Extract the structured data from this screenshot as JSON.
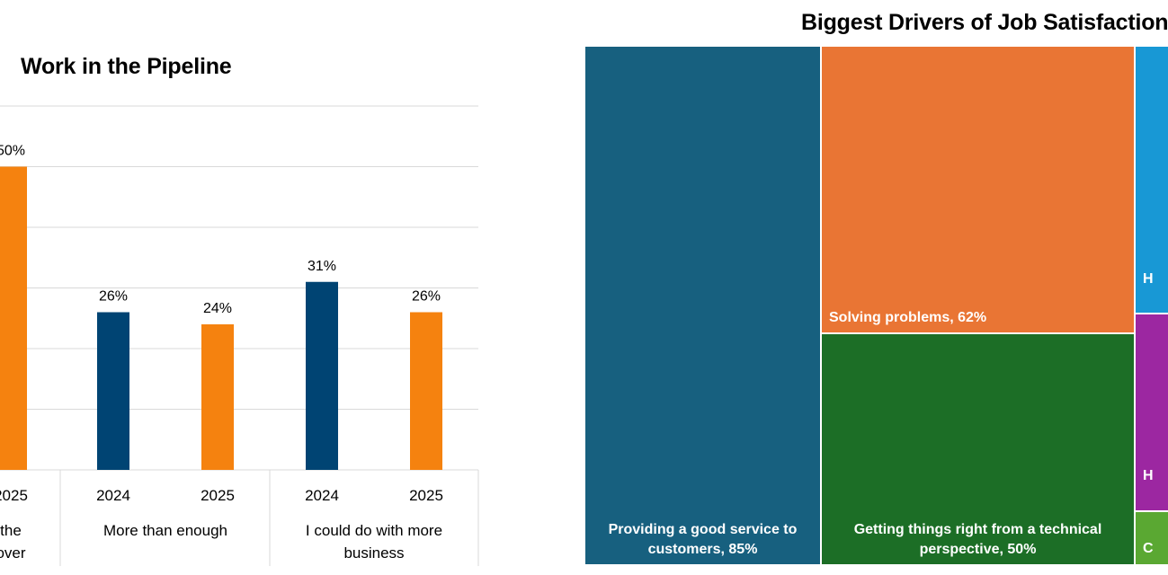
{
  "colors": {
    "series_2024": "#004473",
    "series_2025": "#F5820F",
    "grid": "#D9D9D9",
    "treemap": [
      "#17607F",
      "#E97534",
      "#1C6E26",
      "#1898D5",
      "#9C27A1",
      "#5AA832"
    ]
  },
  "chart_data": [
    {
      "type": "bar",
      "title": "Work in the Pipeline",
      "ylim": [
        0,
        60
      ],
      "grid": true,
      "groups": [
        {
          "label_lines": [
            "the",
            "over"
          ],
          "bars": [
            {
              "year": "2025",
              "value": 50,
              "label": "50%"
            }
          ]
        },
        {
          "label_lines": [
            "More than enough"
          ],
          "bars": [
            {
              "year": "2024",
              "value": 26,
              "label": "26%"
            },
            {
              "year": "2025",
              "value": 24,
              "label": "24%"
            }
          ]
        },
        {
          "label_lines": [
            "I could do with more",
            "business"
          ],
          "bars": [
            {
              "year": "2024",
              "value": 31,
              "label": "31%"
            },
            {
              "year": "2025",
              "value": 26,
              "label": "26%"
            }
          ]
        }
      ]
    },
    {
      "type": "treemap",
      "title": "Biggest Drivers of Job Satisfaction",
      "items": [
        {
          "label_lines": [
            "Providing a good service to",
            "customers, 85%"
          ],
          "value": 85
        },
        {
          "label_lines": [
            "Solving problems, 62%"
          ],
          "value": 62
        },
        {
          "label_lines": [
            "Getting things right from a technical",
            "perspective, 50%"
          ],
          "value": 50
        },
        {
          "label_lines": [
            "H"
          ],
          "value": null
        },
        {
          "label_lines": [
            "H"
          ],
          "value": null
        },
        {
          "label_lines": [
            "C"
          ],
          "value": null
        }
      ]
    }
  ]
}
